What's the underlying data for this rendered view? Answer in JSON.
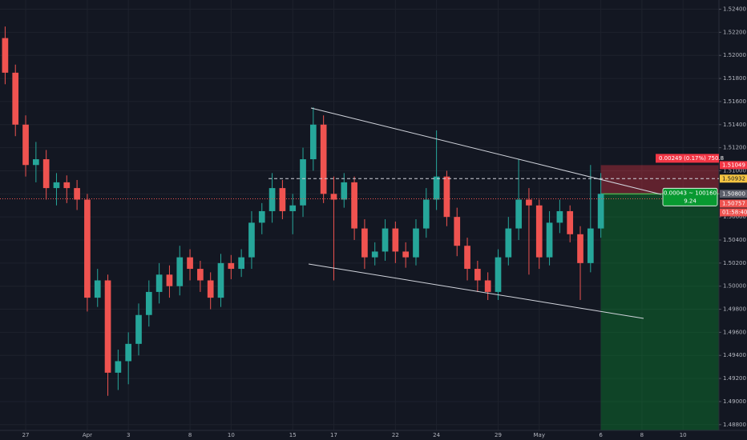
{
  "chart_data": {
    "type": "candlestick",
    "categories": [
      null,
      null,
      "27",
      null,
      null,
      null,
      null,
      null,
      "Apr",
      null,
      null,
      null,
      "3",
      null,
      null,
      null,
      null,
      null,
      "8",
      null,
      null,
      null,
      "10",
      null,
      null,
      null,
      null,
      null,
      "15",
      null,
      null,
      null,
      "17",
      null,
      null,
      null,
      null,
      null,
      "22",
      null,
      null,
      null,
      "24",
      null,
      null,
      null,
      null,
      null,
      "29",
      null,
      null,
      null,
      "May",
      null,
      null,
      null,
      null,
      null,
      "6",
      null,
      null,
      null,
      "8",
      null,
      null,
      null,
      "10",
      null,
      null,
      null
    ],
    "open": [
      1.5215,
      1.5185,
      1.514,
      1.5105,
      1.511,
      1.5085,
      1.509,
      1.5085,
      1.5075,
      1.499,
      1.5005,
      1.4925,
      1.4935,
      1.495,
      1.4975,
      1.4995,
      1.501,
      1.5,
      1.5025,
      1.5015,
      1.5005,
      1.499,
      1.502,
      1.5015,
      1.5025,
      1.5055,
      1.5065,
      1.5085,
      1.5065,
      1.507,
      1.511,
      1.514,
      1.508,
      1.5075,
      1.509,
      1.505,
      1.5025,
      1.503,
      1.505,
      1.503,
      1.5025,
      1.505,
      1.5075,
      1.5095,
      1.506,
      1.5035,
      1.5015,
      1.5005,
      1.4995,
      1.5025,
      1.505,
      1.5075,
      1.507,
      1.5025,
      1.5055,
      1.5065,
      1.5045,
      1.502,
      1.505,
      null,
      null,
      null,
      null,
      null,
      null,
      null,
      null,
      null,
      null,
      null
    ],
    "high": [
      1.5225,
      1.5192,
      1.5148,
      1.5125,
      1.5118,
      1.5098,
      1.5096,
      1.5092,
      1.508,
      1.5015,
      1.501,
      1.4945,
      1.496,
      1.4985,
      1.5005,
      1.502,
      1.5018,
      1.5035,
      1.5032,
      1.5022,
      1.5012,
      1.5028,
      1.5027,
      1.5032,
      1.5065,
      1.5072,
      1.5098,
      1.5092,
      1.508,
      1.512,
      1.5155,
      1.5148,
      1.5095,
      1.5098,
      1.5095,
      1.5058,
      1.5038,
      1.5058,
      1.5056,
      1.5038,
      1.5058,
      1.5085,
      1.5135,
      1.51,
      1.5068,
      1.5042,
      1.5022,
      1.5012,
      1.5032,
      1.506,
      1.511,
      1.5085,
      1.5075,
      1.5065,
      1.5075,
      1.507,
      1.5052,
      1.5105,
      1.5098,
      null,
      null,
      null,
      null,
      null,
      null,
      null,
      null,
      null,
      null,
      null
    ],
    "low": [
      1.5175,
      1.513,
      1.5095,
      1.509,
      1.5075,
      1.507,
      1.5072,
      1.5066,
      1.4978,
      1.4982,
      1.4905,
      1.491,
      1.4915,
      1.494,
      1.4965,
      1.4985,
      1.499,
      1.4992,
      1.5005,
      1.4995,
      1.498,
      1.4982,
      1.5006,
      1.5008,
      1.5015,
      1.5045,
      1.5055,
      1.5058,
      1.5045,
      1.506,
      1.51,
      1.5072,
      1.5005,
      1.5068,
      1.504,
      1.5015,
      1.5018,
      1.5022,
      1.502,
      1.5016,
      1.5018,
      1.5042,
      1.5066,
      1.5052,
      1.5026,
      1.5005,
      1.4995,
      1.4988,
      1.4988,
      1.5018,
      1.504,
      1.501,
      1.5015,
      1.5018,
      1.5046,
      1.5038,
      1.4988,
      1.5012,
      1.5042,
      null,
      null,
      null,
      null,
      null,
      null,
      null,
      null,
      null,
      null,
      null
    ],
    "close": [
      1.5185,
      1.514,
      1.5105,
      1.511,
      1.5085,
      1.509,
      1.5085,
      1.5075,
      1.499,
      1.5005,
      1.4925,
      1.4935,
      1.495,
      1.4975,
      1.4995,
      1.501,
      1.5,
      1.5025,
      1.5015,
      1.5005,
      1.499,
      1.502,
      1.5015,
      1.5025,
      1.5055,
      1.5065,
      1.5085,
      1.5065,
      1.507,
      1.511,
      1.514,
      1.508,
      1.5075,
      1.509,
      1.505,
      1.5025,
      1.503,
      1.505,
      1.503,
      1.5025,
      1.505,
      1.5075,
      1.5095,
      1.506,
      1.5035,
      1.5015,
      1.5005,
      1.4995,
      1.5025,
      1.505,
      1.5075,
      1.507,
      1.5025,
      1.5055,
      1.5065,
      1.5045,
      1.502,
      1.505,
      1.508,
      null,
      null,
      null,
      null,
      null,
      null,
      null,
      null,
      null,
      null,
      null
    ],
    "up_color": "#26a69a",
    "down_color": "#ef5350",
    "ylim": [
      1.4875,
      1.5248
    ],
    "yticks": [
      {
        "value": 1.488,
        "label": "1.48800"
      },
      {
        "value": 1.49,
        "label": "1.49000"
      },
      {
        "value": 1.492,
        "label": "1.49200"
      },
      {
        "value": 1.494,
        "label": "1.49400"
      },
      {
        "value": 1.496,
        "label": "1.49600"
      },
      {
        "value": 1.498,
        "label": "1.49800"
      },
      {
        "value": 1.5,
        "label": "1.50000"
      },
      {
        "value": 1.502,
        "label": "1.50200"
      },
      {
        "value": 1.504,
        "label": "1.50400"
      },
      {
        "value": 1.506,
        "label": "1.50600"
      },
      {
        "value": 1.508,
        "label": "1.50800"
      },
      {
        "value": 1.51,
        "label": "1.51000"
      },
      {
        "value": 1.512,
        "label": "1.51200"
      },
      {
        "value": 1.514,
        "label": "1.51400"
      },
      {
        "value": 1.516,
        "label": "1.51600"
      },
      {
        "value": 1.518,
        "label": "1.51800"
      },
      {
        "value": 1.52,
        "label": "1.52000"
      },
      {
        "value": 1.522,
        "label": "1.52200"
      },
      {
        "value": 1.524,
        "label": "1.52400"
      }
    ],
    "price_labels": [
      {
        "value": 1.51049,
        "label": "1.51049",
        "color": "#f23645"
      },
      {
        "value": 1.50932,
        "label": "1.50932",
        "color": "#f5c542"
      },
      {
        "value": 1.508,
        "label": "1.50800",
        "color": "#5d606b"
      },
      {
        "value": 1.50757,
        "label": "1.50757",
        "color": "#ef5350"
      }
    ],
    "countdown": "01:58:40",
    "stop_label": "0.00249 (0.17%) 750.8",
    "target_label": [
      "0.00043 ~ 100160",
      "9.24"
    ]
  }
}
